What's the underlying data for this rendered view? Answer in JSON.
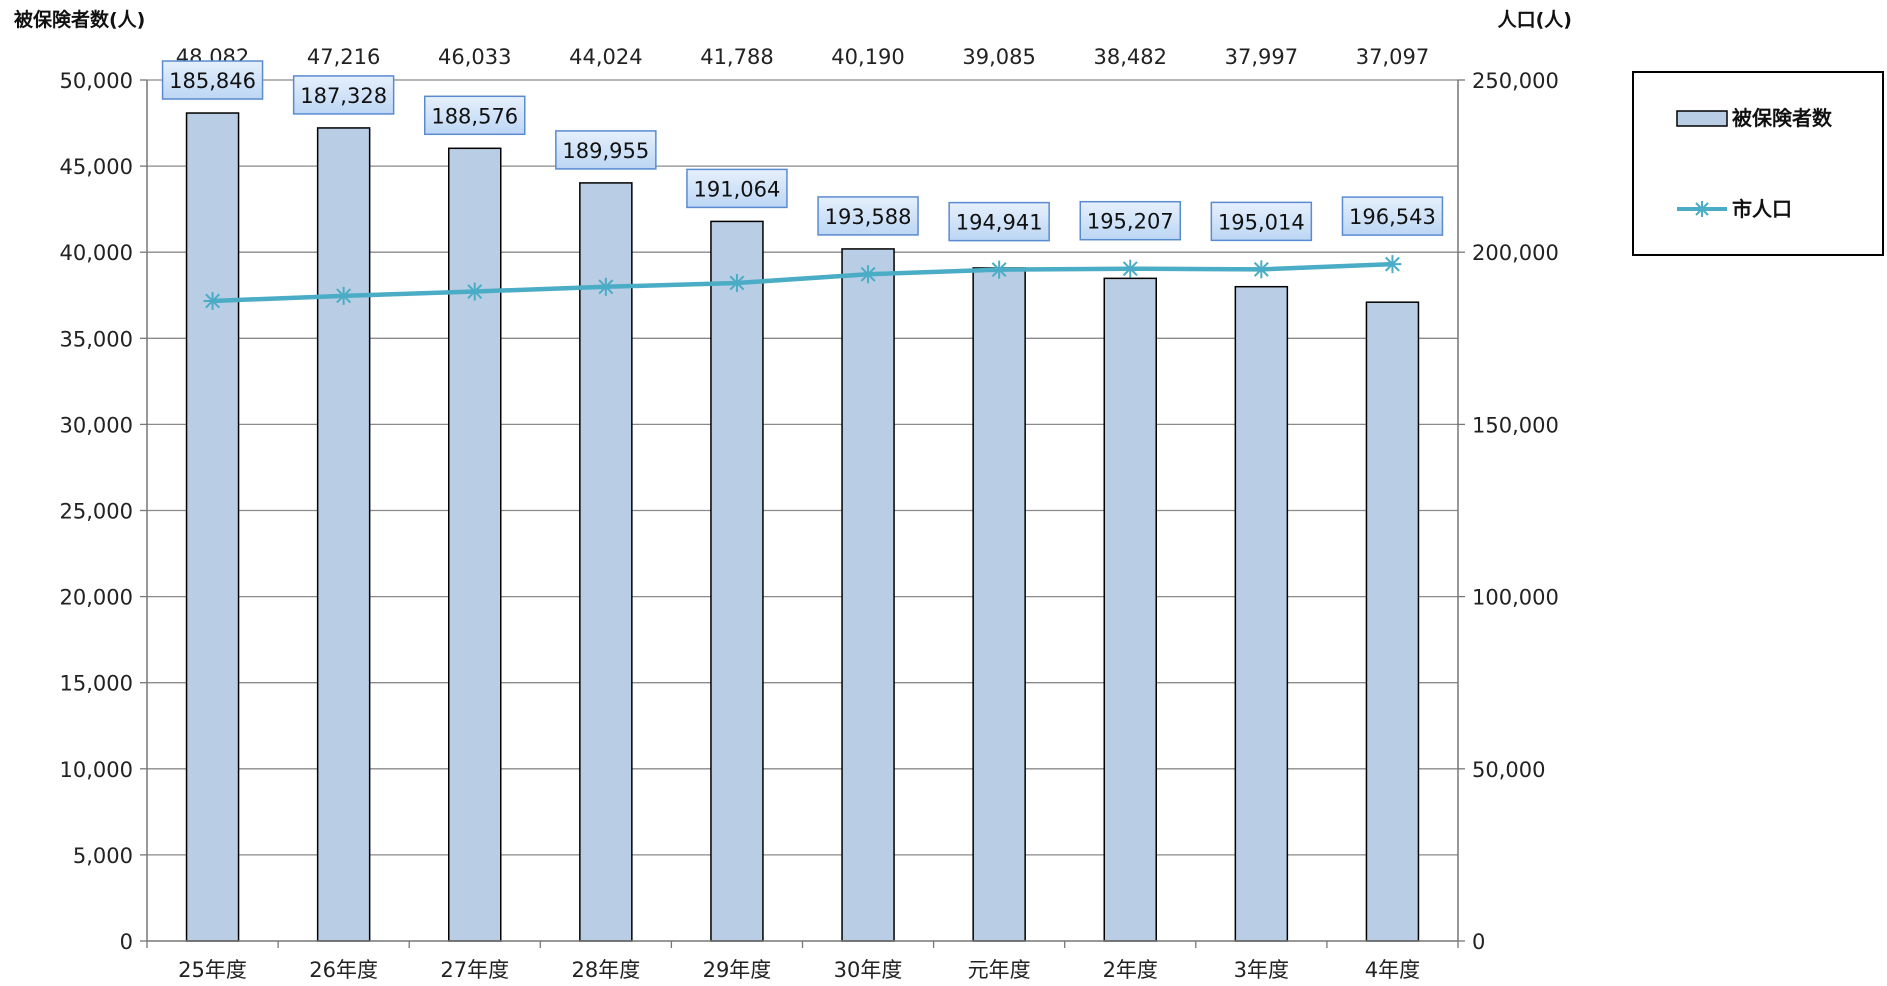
{
  "chart_data": {
    "type": "bar",
    "categories": [
      "25年度",
      "26年度",
      "27年度",
      "28年度",
      "29年度",
      "30年度",
      "元年度",
      "2年度",
      "3年度",
      "4年度"
    ],
    "series": [
      {
        "name": "被保険者数",
        "type": "bar",
        "axis": "left",
        "color": "#b9cde4",
        "values": [
          48082,
          47216,
          46033,
          44024,
          41788,
          40190,
          39085,
          38482,
          37997,
          37097
        ]
      },
      {
        "name": "市人口",
        "type": "line",
        "axis": "right",
        "color": "#4bacc6",
        "values": [
          185846,
          187328,
          188576,
          189955,
          191064,
          193588,
          194941,
          195207,
          195014,
          196543
        ]
      }
    ],
    "ylabel": "被保険者数(人)",
    "y2label": "人口(人)",
    "ylim": [
      0,
      50000
    ],
    "y2lim": [
      0,
      250000
    ],
    "yticks": [
      "0",
      "5,000",
      "10,000",
      "15,000",
      "20,000",
      "25,000",
      "30,000",
      "35,000",
      "40,000",
      "45,000",
      "50,000"
    ],
    "y2ticks": [
      "0",
      "50,000",
      "100,000",
      "150,000",
      "200,000",
      "250,000"
    ],
    "bar_labels": [
      "48,082",
      "47,216",
      "46,033",
      "44,024",
      "41,788",
      "40,190",
      "39,085",
      "38,482",
      "37,997",
      "37,097"
    ],
    "line_labels": [
      "185,846",
      "187,328",
      "188,576",
      "189,955",
      "191,064",
      "193,588",
      "194,941",
      "195,207",
      "195,014",
      "196,543"
    ],
    "grid": true,
    "legend_position": "top-right"
  }
}
